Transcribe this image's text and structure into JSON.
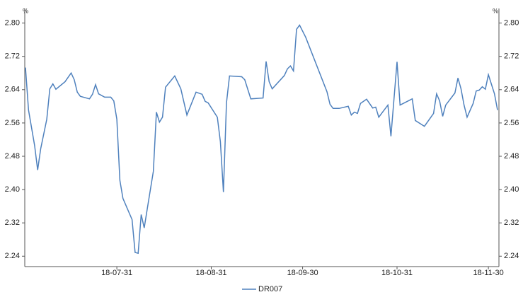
{
  "chart_data": {
    "type": "line",
    "y_unit": "%",
    "x": [
      "18-07-01",
      "18-07-02",
      "18-07-04",
      "18-07-05",
      "18-07-06",
      "18-07-08",
      "18-07-09",
      "18-07-10",
      "18-07-11",
      "18-07-14",
      "18-07-16",
      "18-07-17",
      "18-07-18",
      "18-07-19",
      "18-07-22",
      "18-07-23",
      "18-07-24",
      "18-07-25",
      "18-07-27",
      "18-07-29",
      "18-07-30",
      "18-07-31",
      "18-08-01",
      "18-08-02",
      "18-08-05",
      "18-08-06",
      "18-08-07",
      "18-08-08",
      "18-08-09",
      "18-08-10",
      "18-08-12",
      "18-08-13",
      "18-08-14",
      "18-08-15",
      "18-08-16",
      "18-08-19",
      "18-08-21",
      "18-08-23",
      "18-08-26",
      "18-08-28",
      "18-08-29",
      "18-08-30",
      "18-09-02",
      "18-09-03",
      "18-09-04",
      "18-09-05",
      "18-09-06",
      "18-09-10",
      "18-09-11",
      "18-09-13",
      "18-09-17",
      "18-09-18",
      "18-09-19",
      "18-09-20",
      "18-09-24",
      "18-09-25",
      "18-09-26",
      "18-09-27",
      "18-09-28",
      "18-09-29",
      "18-10-01",
      "18-10-08",
      "18-10-09",
      "18-10-10",
      "18-10-12",
      "18-10-15",
      "18-10-16",
      "18-10-17",
      "18-10-18",
      "18-10-19",
      "18-10-21",
      "18-10-23",
      "18-10-24",
      "18-10-25",
      "18-10-28",
      "18-10-29",
      "18-10-31",
      "18-11-01",
      "18-11-05",
      "18-11-06",
      "18-11-09",
      "18-11-12",
      "18-11-13",
      "18-11-14",
      "18-11-15",
      "18-11-16",
      "18-11-19",
      "18-11-20",
      "18-11-21",
      "18-11-22",
      "18-11-23",
      "18-11-25",
      "18-11-26",
      "18-11-27",
      "18-11-28",
      "18-11-29",
      "18-11-30",
      "18-12-02",
      "18-12-03"
    ],
    "series": [
      {
        "name": "DR007",
        "color": "#4f81bd",
        "values": [
          2.693,
          2.591,
          2.506,
          2.447,
          2.498,
          2.569,
          2.642,
          2.654,
          2.641,
          2.659,
          2.68,
          2.664,
          2.634,
          2.624,
          2.618,
          2.629,
          2.652,
          2.63,
          2.622,
          2.622,
          2.613,
          2.569,
          2.422,
          2.379,
          2.328,
          2.249,
          2.247,
          2.34,
          2.308,
          2.354,
          2.444,
          2.586,
          2.562,
          2.574,
          2.646,
          2.673,
          2.642,
          2.579,
          2.634,
          2.629,
          2.612,
          2.608,
          2.574,
          2.515,
          2.394,
          2.608,
          2.673,
          2.671,
          2.664,
          2.618,
          2.62,
          2.708,
          2.659,
          2.642,
          2.674,
          2.69,
          2.697,
          2.685,
          2.785,
          2.795,
          2.766,
          2.635,
          2.605,
          2.595,
          2.595,
          2.6,
          2.579,
          2.586,
          2.583,
          2.607,
          2.617,
          2.596,
          2.598,
          2.574,
          2.603,
          2.528,
          2.707,
          2.603,
          2.618,
          2.566,
          2.552,
          2.583,
          2.63,
          2.613,
          2.576,
          2.603,
          2.632,
          2.668,
          2.642,
          2.603,
          2.574,
          2.607,
          2.637,
          2.639,
          2.647,
          2.641,
          2.676,
          2.63,
          2.591
        ]
      }
    ],
    "xlim": [
      "18-07-01",
      "18-12-03"
    ],
    "xticks": [
      "18-07-31",
      "18-08-31",
      "18-09-30",
      "18-10-31",
      "18-11-30"
    ],
    "ylim": [
      2.215,
      2.835
    ],
    "yticks": [
      2.24,
      2.32,
      {
        "value": 2.4,
        "label": "2.40"
      },
      2.48,
      2.56,
      2.64,
      2.72,
      {
        "value": 2.8,
        "label": "2.80"
      }
    ],
    "legend": "bottom"
  }
}
